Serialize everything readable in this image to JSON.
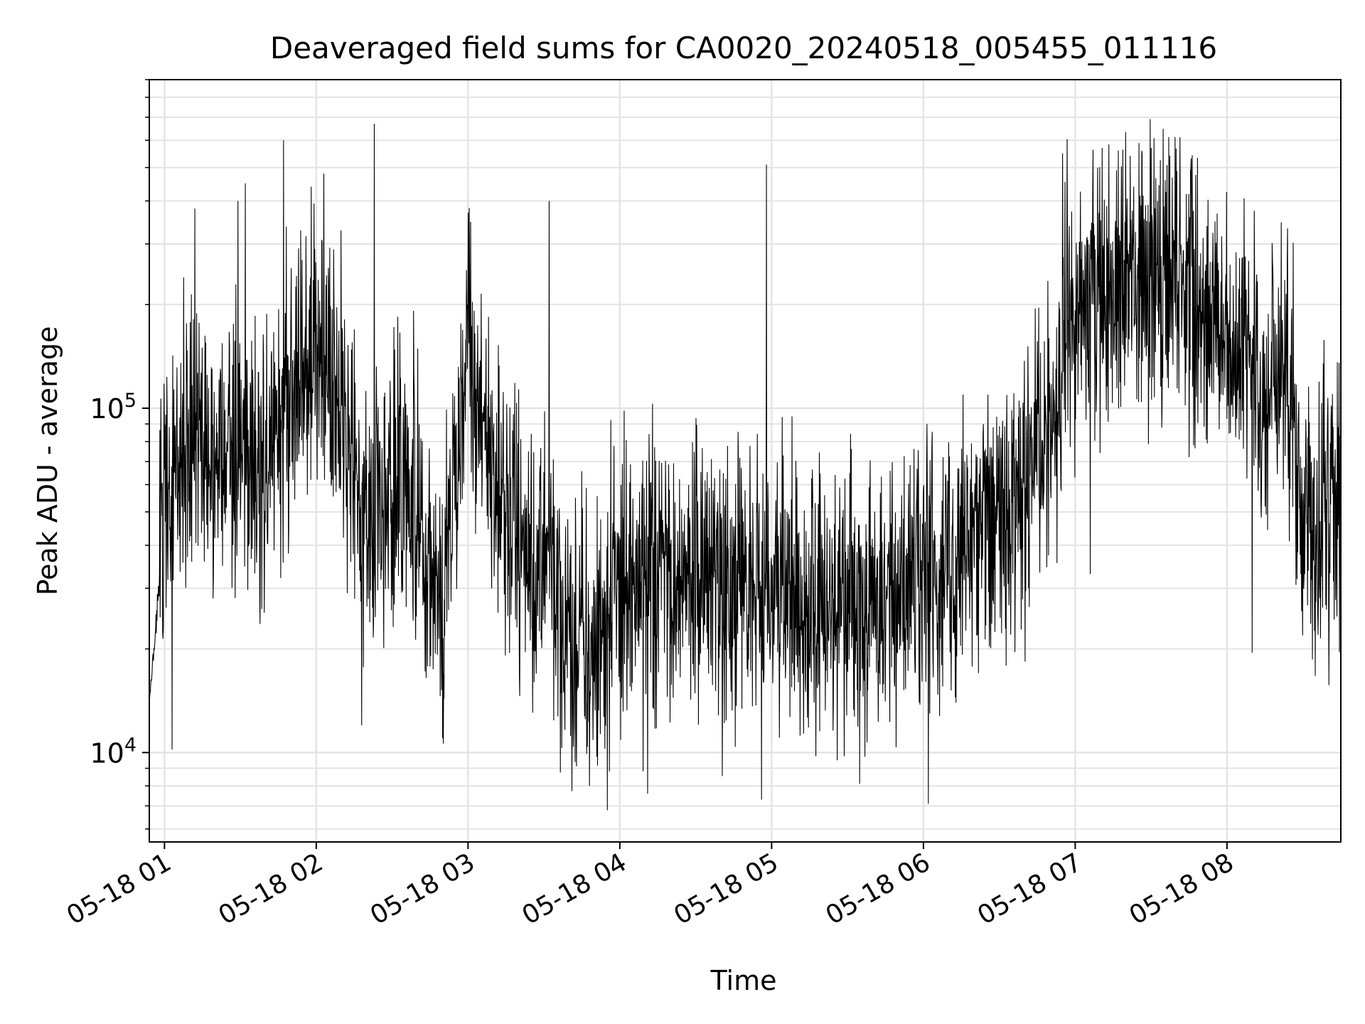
{
  "chart_data": {
    "type": "line",
    "title": "Deaveraged field sums for CA0020_20240518_005455_011116",
    "xlabel": "Time",
    "ylabel": "Peak ADU - average",
    "y_scale": "log",
    "xlim": [
      "2024-05-18T00:54",
      "2024-05-18T08:45"
    ],
    "ylim": [
      5500,
      900000
    ],
    "x_ticks": [
      {
        "value": "2024-05-18T01:00",
        "label": "05-18 01"
      },
      {
        "value": "2024-05-18T02:00",
        "label": "05-18 02"
      },
      {
        "value": "2024-05-18T03:00",
        "label": "05-18 03"
      },
      {
        "value": "2024-05-18T04:00",
        "label": "05-18 04"
      },
      {
        "value": "2024-05-18T05:00",
        "label": "05-18 05"
      },
      {
        "value": "2024-05-18T06:00",
        "label": "05-18 06"
      },
      {
        "value": "2024-05-18T07:00",
        "label": "05-18 07"
      },
      {
        "value": "2024-05-18T08:00",
        "label": "05-18 08"
      }
    ],
    "y_ticks": [
      {
        "value": 10000,
        "base": "10",
        "exp": "4"
      },
      {
        "value": 100000,
        "base": "10",
        "exp": "5"
      }
    ],
    "grid": true,
    "line_color": "#000000",
    "series": [
      {
        "profile": [
          [
            "2024-05-18T00:54",
            14000
          ],
          [
            "2024-05-18T01:00",
            45000
          ],
          [
            "2024-05-18T01:10",
            90000
          ],
          [
            "2024-05-18T01:20",
            70000
          ],
          [
            "2024-05-18T01:30",
            85000
          ],
          [
            "2024-05-18T01:40",
            60000
          ],
          [
            "2024-05-18T01:50",
            120000
          ],
          [
            "2024-05-18T02:00",
            150000
          ],
          [
            "2024-05-18T02:10",
            110000
          ],
          [
            "2024-05-18T02:20",
            45000
          ],
          [
            "2024-05-18T02:35",
            60000
          ],
          [
            "2024-05-18T02:50",
            28000
          ],
          [
            "2024-05-18T03:00",
            150000
          ],
          [
            "2024-05-18T03:10",
            60000
          ],
          [
            "2024-05-18T03:30",
            30000
          ],
          [
            "2024-05-18T03:45",
            20000
          ],
          [
            "2024-05-18T04:00",
            32000
          ],
          [
            "2024-05-18T04:30",
            36000
          ],
          [
            "2024-05-18T05:00",
            28000
          ],
          [
            "2024-05-18T05:30",
            26000
          ],
          [
            "2024-05-18T06:00",
            32000
          ],
          [
            "2024-05-18T06:30",
            50000
          ],
          [
            "2024-05-18T06:50",
            90000
          ],
          [
            "2024-05-18T07:00",
            200000
          ],
          [
            "2024-05-18T07:30",
            270000
          ],
          [
            "2024-05-18T07:45",
            230000
          ],
          [
            "2024-05-18T08:00",
            150000
          ],
          [
            "2024-05-18T08:15",
            120000
          ],
          [
            "2024-05-18T08:25",
            130000
          ],
          [
            "2024-05-18T08:30",
            55000
          ],
          [
            "2024-05-18T08:45",
            50000
          ]
        ],
        "spikes": [
          [
            "2024-05-18T01:03",
            10200
          ],
          [
            "2024-05-18T01:12",
            380000
          ],
          [
            "2024-05-18T01:29",
            400000
          ],
          [
            "2024-05-18T01:32",
            450000
          ],
          [
            "2024-05-18T01:47",
            600000
          ],
          [
            "2024-05-18T01:58",
            440000
          ],
          [
            "2024-05-18T02:03",
            480000
          ],
          [
            "2024-05-18T02:18",
            12000
          ],
          [
            "2024-05-18T02:23",
            670000
          ],
          [
            "2024-05-18T02:50",
            11000
          ],
          [
            "2024-05-18T03:00",
            370000
          ],
          [
            "2024-05-18T03:32",
            400000
          ],
          [
            "2024-05-18T03:48",
            8000
          ],
          [
            "2024-05-18T03:55",
            6800
          ],
          [
            "2024-05-18T04:11",
            7600
          ],
          [
            "2024-05-18T04:56",
            7300
          ],
          [
            "2024-05-18T04:58",
            510000
          ],
          [
            "2024-05-18T05:26",
            9500
          ],
          [
            "2024-05-18T06:02",
            7100
          ],
          [
            "2024-05-18T06:55",
            550000
          ],
          [
            "2024-05-18T07:30",
            570000
          ],
          [
            "2024-05-18T07:17",
            560000
          ],
          [
            "2024-05-18T07:06",
            33000
          ],
          [
            "2024-05-18T08:10",
            19500
          ],
          [
            "2024-05-18T08:36",
            22000
          ]
        ],
        "noise_decades": 0.55
      }
    ]
  }
}
